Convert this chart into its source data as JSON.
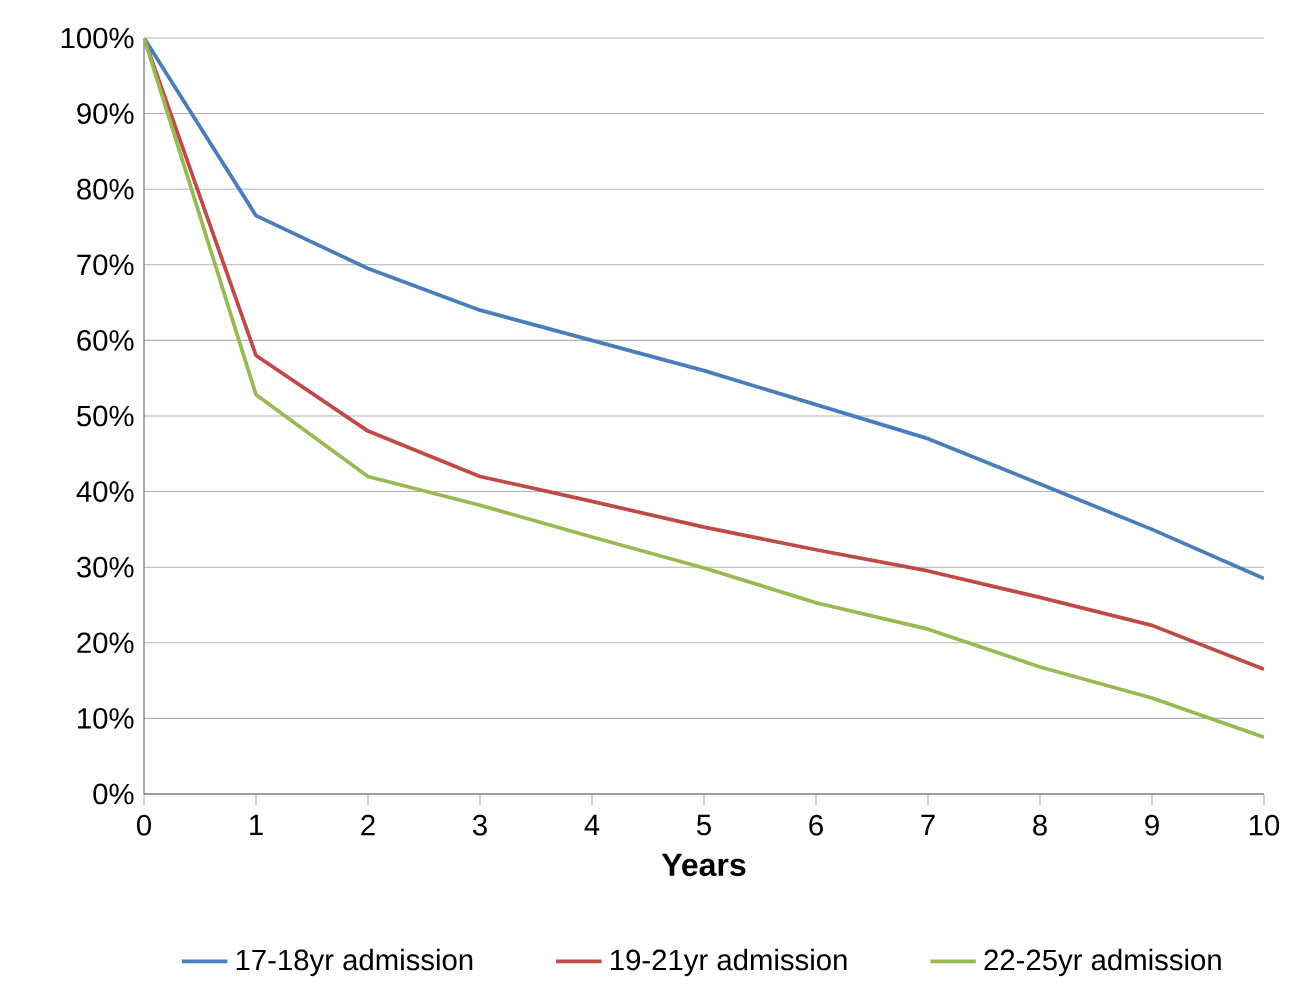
{
  "chart_data": {
    "type": "line",
    "xlabel": "Years",
    "x": [
      0,
      1,
      2,
      3,
      4,
      5,
      6,
      7,
      8,
      9,
      10
    ],
    "series": [
      {
        "name": "17-18yr admission",
        "color": "#4a7ebb",
        "values": [
          100,
          76.5,
          69.5,
          64,
          60,
          56,
          51.5,
          47,
          41,
          35,
          28.5
        ]
      },
      {
        "name": "19-21yr admission",
        "color": "#be4b48",
        "values": [
          100,
          58,
          48,
          42,
          38.7,
          35.3,
          32.3,
          29.5,
          26,
          22.3,
          16.5
        ]
      },
      {
        "name": "22-25yr admission",
        "color": "#98b954",
        "values": [
          100,
          52.8,
          42,
          38.2,
          34,
          29.9,
          25.3,
          21.8,
          16.8,
          12.7,
          7.5
        ]
      }
    ],
    "xlim": [
      0,
      10
    ],
    "xticks": [
      0,
      1,
      2,
      3,
      4,
      5,
      6,
      7,
      8,
      9,
      10
    ],
    "ylim": [
      0,
      100
    ],
    "yticks": [
      {
        "value": 0,
        "label": "0%"
      },
      {
        "value": 10,
        "label": "10%"
      },
      {
        "value": 20,
        "label": "20%"
      },
      {
        "value": 30,
        "label": "30%"
      },
      {
        "value": 40,
        "label": "40%"
      },
      {
        "value": 50,
        "label": "50%"
      },
      {
        "value": 60,
        "label": "60%"
      },
      {
        "value": 70,
        "label": "70%"
      },
      {
        "value": 80,
        "label": "80%"
      },
      {
        "value": 90,
        "label": "90%"
      },
      {
        "value": 100,
        "label": "100%"
      }
    ],
    "grid": "y",
    "legend": "bottom",
    "marker": "none",
    "line_style": "solid"
  }
}
